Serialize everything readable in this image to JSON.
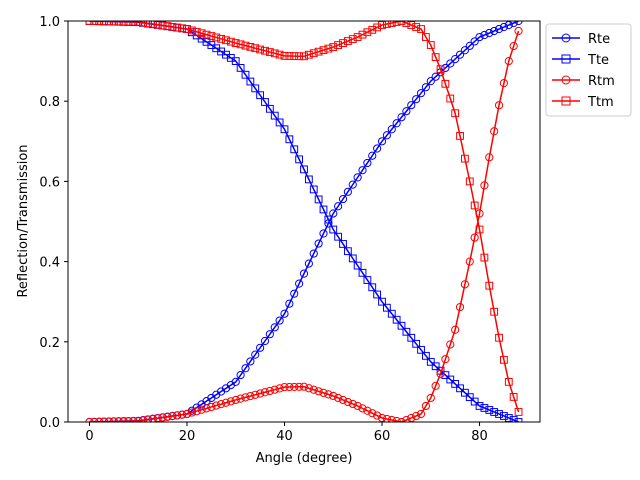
{
  "chart_data": {
    "type": "line",
    "title": "",
    "xlabel": "Angle (degree)",
    "ylabel": "Reflection/Transmission",
    "xlim": [
      -4.4,
      92.4
    ],
    "ylim": [
      0,
      1
    ],
    "x_ticks": [
      0,
      20,
      40,
      60,
      80
    ],
    "y_ticks": [
      0.0,
      0.2,
      0.4,
      0.6,
      0.8,
      1.0
    ],
    "y_tick_labels": [
      "0.0",
      "0.2",
      "0.4",
      "0.6",
      "0.8",
      "1.0"
    ],
    "grid": false,
    "legend_position": "outside-top-right",
    "x_range": {
      "start": 0,
      "end": 88,
      "step": 1
    },
    "series": [
      {
        "name": "Rte",
        "color": "#0000ff",
        "marker": "circle",
        "points": [
          [
            0,
            0.0
          ],
          [
            10,
            0.003
          ],
          [
            20,
            0.02
          ],
          [
            30,
            0.1
          ],
          [
            40,
            0.27
          ],
          [
            50,
            0.52
          ],
          [
            60,
            0.7
          ],
          [
            70,
            0.85
          ],
          [
            80,
            0.96
          ],
          [
            88,
            1.0
          ]
        ]
      },
      {
        "name": "Tte",
        "color": "#0000ff",
        "marker": "square",
        "points": [
          [
            0,
            1.0
          ],
          [
            10,
            0.997
          ],
          [
            20,
            0.98
          ],
          [
            30,
            0.9
          ],
          [
            40,
            0.73
          ],
          [
            50,
            0.48
          ],
          [
            60,
            0.3
          ],
          [
            70,
            0.15
          ],
          [
            80,
            0.04
          ],
          [
            88,
            0.0
          ]
        ]
      },
      {
        "name": "Rtm",
        "color": "#ff0000",
        "marker": "circle",
        "points": [
          [
            0,
            0.0
          ],
          [
            10,
            0.002
          ],
          [
            20,
            0.02
          ],
          [
            30,
            0.055
          ],
          [
            40,
            0.087
          ],
          [
            44,
            0.088
          ],
          [
            50,
            0.065
          ],
          [
            55,
            0.04
          ],
          [
            60,
            0.01
          ],
          [
            64,
            0.0
          ],
          [
            68,
            0.02
          ],
          [
            70,
            0.06
          ],
          [
            72,
            0.12
          ],
          [
            75,
            0.23
          ],
          [
            78,
            0.4
          ],
          [
            80,
            0.52
          ],
          [
            82,
            0.66
          ],
          [
            84,
            0.79
          ],
          [
            86,
            0.9
          ],
          [
            88,
            0.975
          ]
        ]
      },
      {
        "name": "Ttm",
        "color": "#ff0000",
        "marker": "square",
        "points": [
          [
            0,
            1.0
          ],
          [
            10,
            0.998
          ],
          [
            20,
            0.98
          ],
          [
            30,
            0.945
          ],
          [
            40,
            0.913
          ],
          [
            44,
            0.912
          ],
          [
            50,
            0.935
          ],
          [
            55,
            0.96
          ],
          [
            60,
            0.99
          ],
          [
            64,
            1.0
          ],
          [
            68,
            0.98
          ],
          [
            70,
            0.94
          ],
          [
            72,
            0.88
          ],
          [
            75,
            0.77
          ],
          [
            78,
            0.6
          ],
          [
            80,
            0.48
          ],
          [
            82,
            0.34
          ],
          [
            84,
            0.21
          ],
          [
            86,
            0.1
          ],
          [
            88,
            0.025
          ]
        ]
      }
    ]
  }
}
